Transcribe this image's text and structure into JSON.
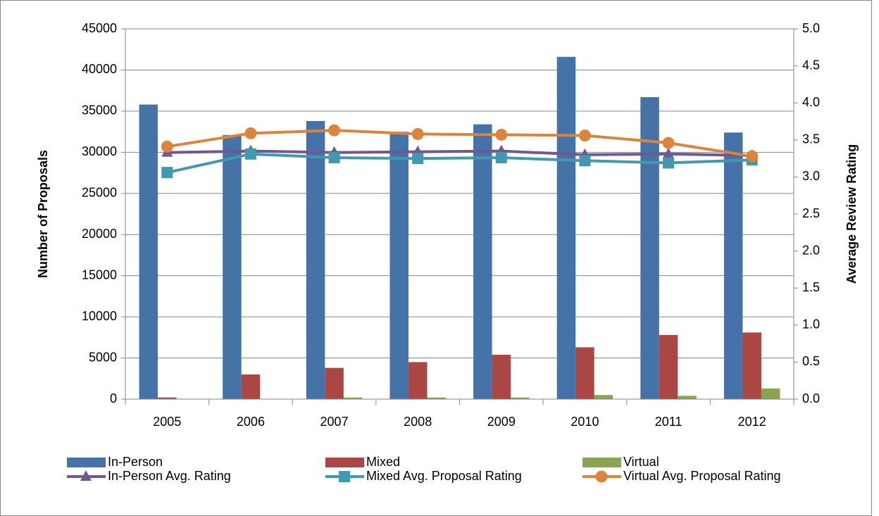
{
  "chart_data": {
    "type": "bar",
    "categories": [
      "2005",
      "2006",
      "2007",
      "2008",
      "2009",
      "2010",
      "2011",
      "2012"
    ],
    "y_label": "Number of Proposals",
    "y2_label": "Average Review Rating",
    "ylim": [
      0,
      45000
    ],
    "yticks": [
      0,
      5000,
      10000,
      15000,
      20000,
      25000,
      30000,
      35000,
      40000,
      45000
    ],
    "y2lim": [
      0,
      5
    ],
    "y2ticks": [
      {
        "value": 0,
        "label": "0.0"
      },
      0.5,
      {
        "value": 1,
        "label": "1.0"
      },
      1.5,
      {
        "value": 2,
        "label": "2.0"
      },
      2.5,
      {
        "value": 3,
        "label": "3.0"
      },
      3.5,
      {
        "value": 4,
        "label": "4.0"
      },
      4.5,
      {
        "value": 5,
        "label": "5.0"
      }
    ],
    "grid": true,
    "legend": "bottom",
    "series": [
      {
        "name": "In-Person",
        "color": "#4572a7",
        "type": "bar",
        "values": [
          35800,
          32100,
          33800,
          32500,
          33400,
          41600,
          36700,
          32400
        ]
      },
      {
        "name": "Mixed",
        "color": "#aa4643",
        "type": "bar",
        "values": [
          200,
          3000,
          3800,
          4500,
          5400,
          6300,
          7800,
          8100
        ]
      },
      {
        "name": "Virtual",
        "color": "#89a54e",
        "type": "bar",
        "values": [
          0,
          0,
          200,
          200,
          200,
          500,
          400,
          1300
        ]
      },
      {
        "name": "In-Person Avg. Rating",
        "color": "#71588f",
        "type": "line",
        "marker": "triangle",
        "axis": "y2",
        "values": [
          3.33,
          3.35,
          3.33,
          3.34,
          3.35,
          3.3,
          3.31,
          3.29
        ]
      },
      {
        "name": "Mixed Avg. Proposal Rating",
        "color": "#4198af",
        "type": "line",
        "marker": "square",
        "axis": "y2",
        "values": [
          3.06,
          3.31,
          3.26,
          3.25,
          3.26,
          3.22,
          3.19,
          3.23
        ]
      },
      {
        "name": "Virtual Avg. Proposal Rating",
        "color": "#db843d",
        "type": "line",
        "marker": "circle",
        "axis": "y2",
        "values": [
          3.41,
          3.59,
          3.63,
          3.58,
          3.57,
          3.56,
          3.46,
          3.28
        ]
      }
    ]
  }
}
